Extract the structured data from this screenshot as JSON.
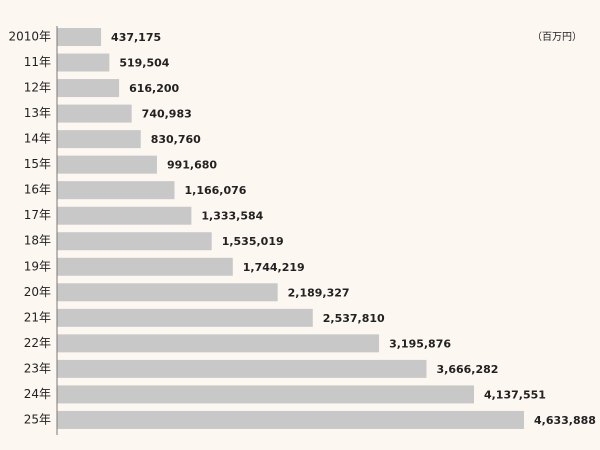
{
  "chart_data": {
    "type": "bar",
    "orientation": "horizontal",
    "unit": "（百万円）",
    "categories": [
      "2010年",
      "11年",
      "12年",
      "13年",
      "14年",
      "15年",
      "16年",
      "17年",
      "18年",
      "19年",
      "20年",
      "21年",
      "22年",
      "23年",
      "24年",
      "25年"
    ],
    "values": [
      437175,
      519504,
      616200,
      740983,
      830760,
      991680,
      1166076,
      1333584,
      1535019,
      1744219,
      2189327,
      2537810,
      3195876,
      3666282,
      4137551,
      4633888
    ],
    "value_labels": [
      "437,175",
      "519,504",
      "616,200",
      "740,983",
      "830,760",
      "991,680",
      "1,166,076",
      "1,333,584",
      "1,535,019",
      "1,744,219",
      "2,189,327",
      "2,537,810",
      "3,195,876",
      "3,666,282",
      "4,137,551",
      "4,633,888"
    ],
    "bar_color": "#c8c8c8",
    "grid": false
  }
}
